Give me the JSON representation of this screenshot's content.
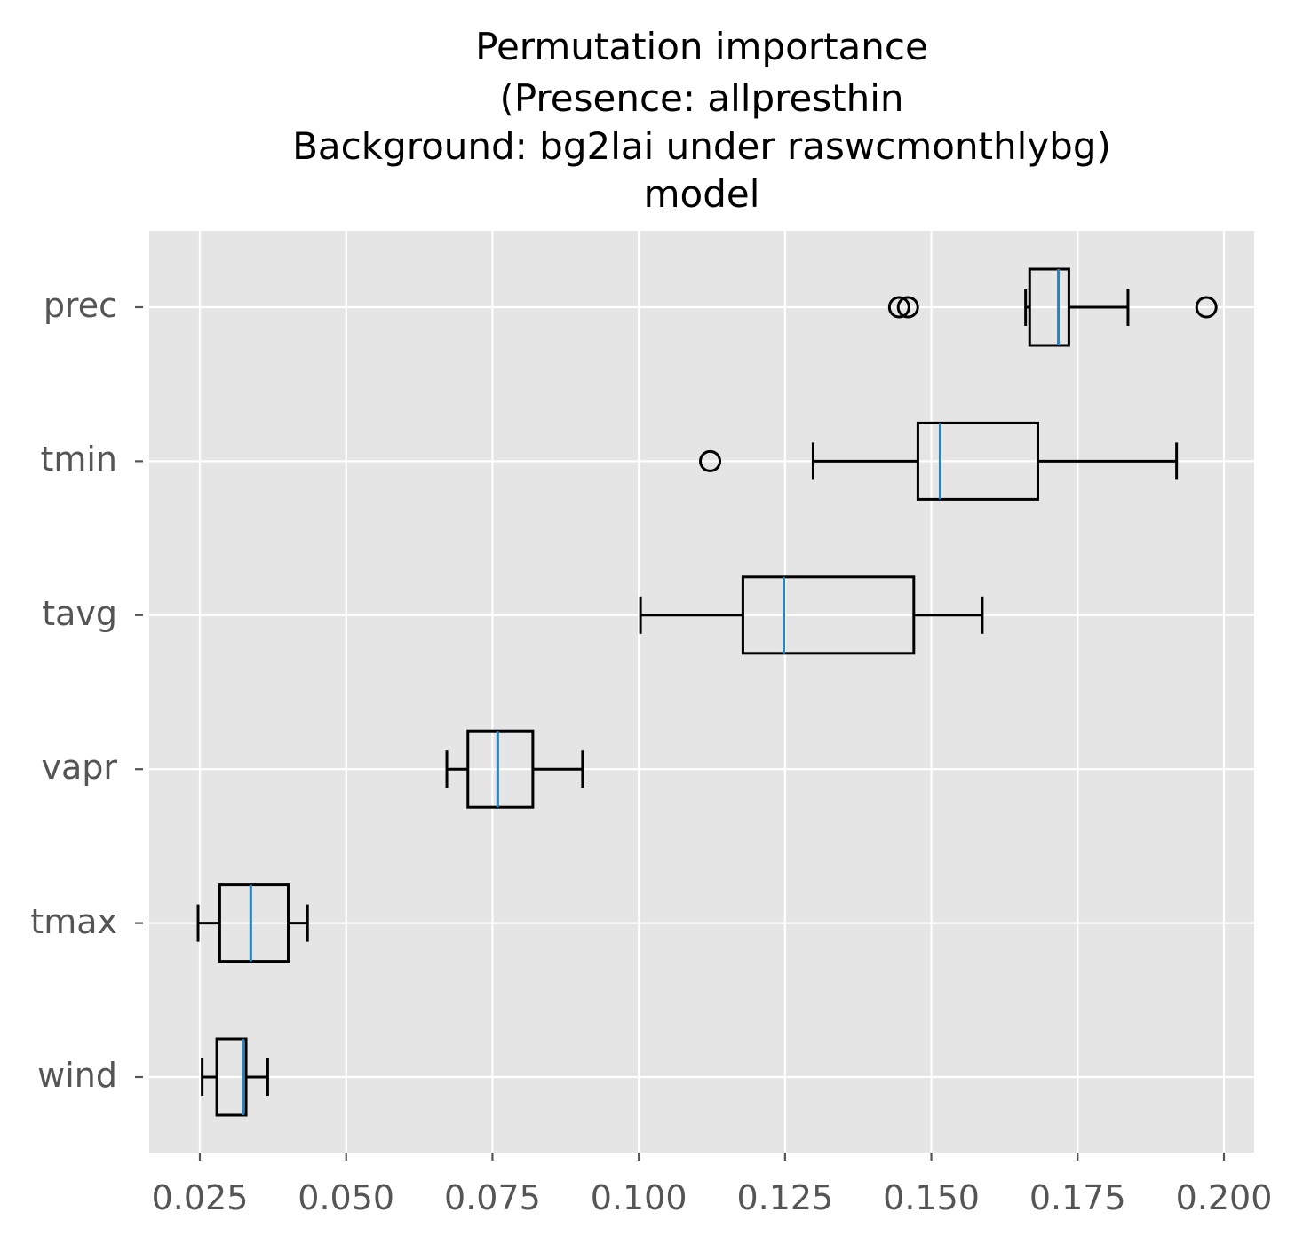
{
  "chart_data": {
    "type": "boxplot",
    "orientation": "horizontal",
    "title": [
      "Permutation importance",
      "(Presence: allpresthin",
      "Background: bg2lai under raswcmonthlybg)",
      "model"
    ],
    "xlabel": "",
    "ylabel": "",
    "xlim": [
      0.0165,
      0.2055
    ],
    "xticks": [
      "0.025",
      "0.050",
      "0.075",
      "0.100",
      "0.125",
      "0.150",
      "0.175",
      "0.200"
    ],
    "grid": true,
    "categories": [
      "prec",
      "tmin",
      "tavg",
      "vapr",
      "tmax",
      "wind"
    ],
    "boxes": [
      {
        "label": "prec",
        "whisker_low": 0.1661,
        "q1": 0.1668,
        "median": 0.1717,
        "q3": 0.1735,
        "whisker_high": 0.1836,
        "outliers": [
          0.1445,
          0.146,
          0.197
        ]
      },
      {
        "label": "tmin",
        "whisker_low": 0.1298,
        "q1": 0.1477,
        "median": 0.1515,
        "q3": 0.1682,
        "whisker_high": 0.1919,
        "outliers": [
          0.1122
        ]
      },
      {
        "label": "tavg",
        "whisker_low": 0.1003,
        "q1": 0.1178,
        "median": 0.1248,
        "q3": 0.147,
        "whisker_high": 0.1587,
        "outliers": []
      },
      {
        "label": "vapr",
        "whisker_low": 0.0672,
        "q1": 0.0708,
        "median": 0.0759,
        "q3": 0.0819,
        "whisker_high": 0.0904,
        "outliers": []
      },
      {
        "label": "tmax",
        "whisker_low": 0.0247,
        "q1": 0.0284,
        "median": 0.0337,
        "q3": 0.0401,
        "whisker_high": 0.0434,
        "outliers": []
      },
      {
        "label": "wind",
        "whisker_low": 0.0254,
        "q1": 0.0279,
        "median": 0.0324,
        "q3": 0.0329,
        "whisker_high": 0.0366,
        "outliers": []
      }
    ],
    "colors": {
      "background": "#e5e5e5",
      "grid": "#ffffff",
      "box": "#000000",
      "median": "#2b83ba",
      "tick_text": "#555555"
    }
  }
}
